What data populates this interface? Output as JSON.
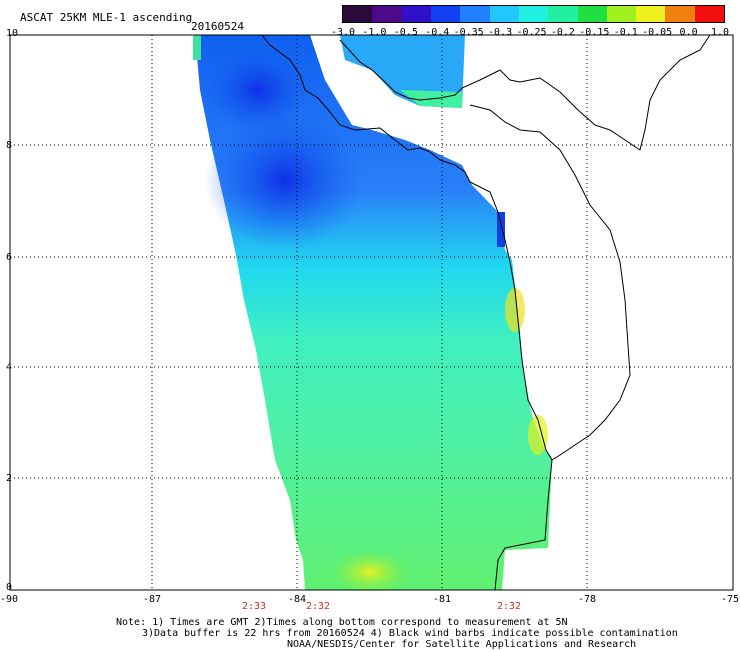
{
  "header": {
    "title": "ASCAT 25KM MLE-1 ascending",
    "date": "20160524"
  },
  "colorbar": {
    "ticks": [
      "-3.0",
      "-1.0",
      "-0.5",
      "-0.4",
      "-0.35",
      "-0.3",
      "-0.25",
      "-0.2",
      "-0.15",
      "-0.1",
      "-0.05",
      "0.0",
      "1.0"
    ],
    "colors": [
      "#2a0a3a",
      "#4a0a8a",
      "#3010c8",
      "#1040f0",
      "#2080ff",
      "#20c8ff",
      "#20f0e0",
      "#20f0a0",
      "#20e040",
      "#a0f020",
      "#f0f020",
      "#f08010",
      "#f01010"
    ]
  },
  "map": {
    "lat_ticks": [
      "10",
      "8",
      "6",
      "4",
      "2",
      "0"
    ],
    "lon_ticks": [
      "-90",
      "-87",
      "-84",
      "-81",
      "-78",
      "-75"
    ],
    "time_labels": [
      "2:33",
      "2:32",
      "2:32"
    ],
    "colors": {
      "land_outline": "#000000",
      "grid": "#000000",
      "time_label": "#c8321e"
    }
  },
  "footer": {
    "line1": "Note: 1) Times are GMT 2)Times along bottom correspond to measurement at 5N",
    "line2": "3)Data buffer is 22 hrs from 20160524 4) Black wind barbs indicate possible contamination",
    "line3": "NOAA/NESDIS/Center for Satellite Applications and Research"
  }
}
